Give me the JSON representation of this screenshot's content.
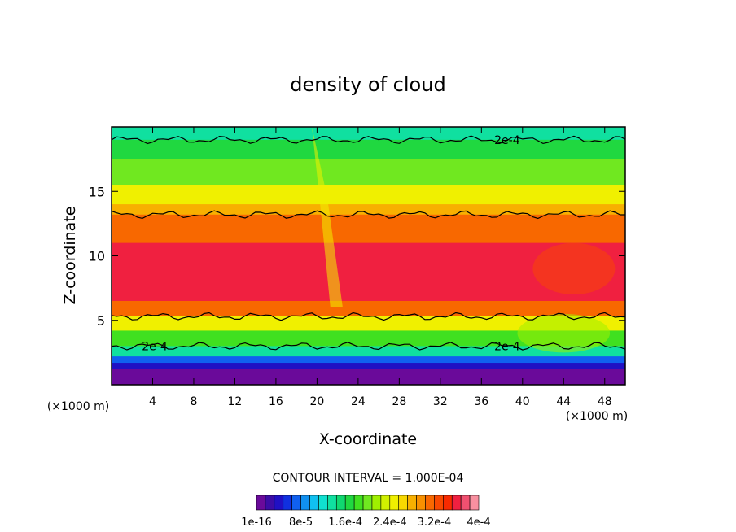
{
  "chart_data": {
    "type": "heatmap",
    "title": "density of cloud",
    "xlabel": "X-coordinate",
    "ylabel": "Z-coordinate",
    "x_unit_left": "(×1000 m)",
    "x_unit_right": "(×1000 m)",
    "xlim": [
      0,
      50
    ],
    "ylim": [
      0,
      20
    ],
    "x_ticks": [
      4,
      8,
      12,
      16,
      20,
      24,
      28,
      32,
      36,
      40,
      44,
      48
    ],
    "y_ticks": [
      5,
      10,
      15
    ],
    "contour_interval_text": "CONTOUR INTERVAL = 1.000E-04",
    "contour_labels": [
      {
        "text": "2e-4",
        "x": 38.5,
        "z": 19.0
      },
      {
        "text": "2e-4",
        "x": 4.2,
        "z": 3.0
      },
      {
        "text": "2e-4",
        "x": 38.5,
        "z": 3.0
      }
    ],
    "contour_lines_z": [
      19.0,
      13.2,
      5.3,
      3.0
    ],
    "colorbar": {
      "min": 1e-16,
      "max": 0.0004,
      "tick_labels": [
        "1e-16",
        "8e-5",
        "1.6e-4",
        "2.4e-4",
        "3.2e-4",
        "4e-4"
      ],
      "colors": [
        "#6a0a9a",
        "#3c0ca6",
        "#2010c4",
        "#1030e0",
        "#1060f0",
        "#1090f0",
        "#10c0f0",
        "#10e0d0",
        "#10e0a0",
        "#10d870",
        "#20d840",
        "#40e020",
        "#70e820",
        "#a0f000",
        "#d0f000",
        "#f0f000",
        "#f8d800",
        "#f8b000",
        "#f89000",
        "#f86800",
        "#f84800",
        "#f82a00",
        "#f02040",
        "#f05070",
        "#f890a0"
      ]
    },
    "vertical_bands": [
      {
        "z": [
          19.0,
          20.0
        ],
        "level": 0.35
      },
      {
        "z": [
          17.5,
          19.0
        ],
        "level": 0.42
      },
      {
        "z": [
          15.5,
          17.5
        ],
        "level": 0.52
      },
      {
        "z": [
          14.0,
          15.5
        ],
        "level": 0.62
      },
      {
        "z": [
          13.2,
          14.0
        ],
        "level": 0.7
      },
      {
        "z": [
          11.0,
          13.2
        ],
        "level": 0.8
      },
      {
        "z": [
          6.5,
          11.0
        ],
        "level": 0.9
      },
      {
        "z": [
          5.3,
          6.5
        ],
        "level": 0.78
      },
      {
        "z": [
          4.2,
          5.3
        ],
        "level": 0.62
      },
      {
        "z": [
          3.0,
          4.2
        ],
        "level": 0.45
      },
      {
        "z": [
          2.2,
          3.0
        ],
        "level": 0.32
      },
      {
        "z": [
          1.7,
          2.2
        ],
        "level": 0.18
      },
      {
        "z": [
          1.2,
          1.7
        ],
        "level": 0.08
      },
      {
        "z": [
          0.0,
          1.2
        ],
        "level": 0.0
      }
    ]
  }
}
